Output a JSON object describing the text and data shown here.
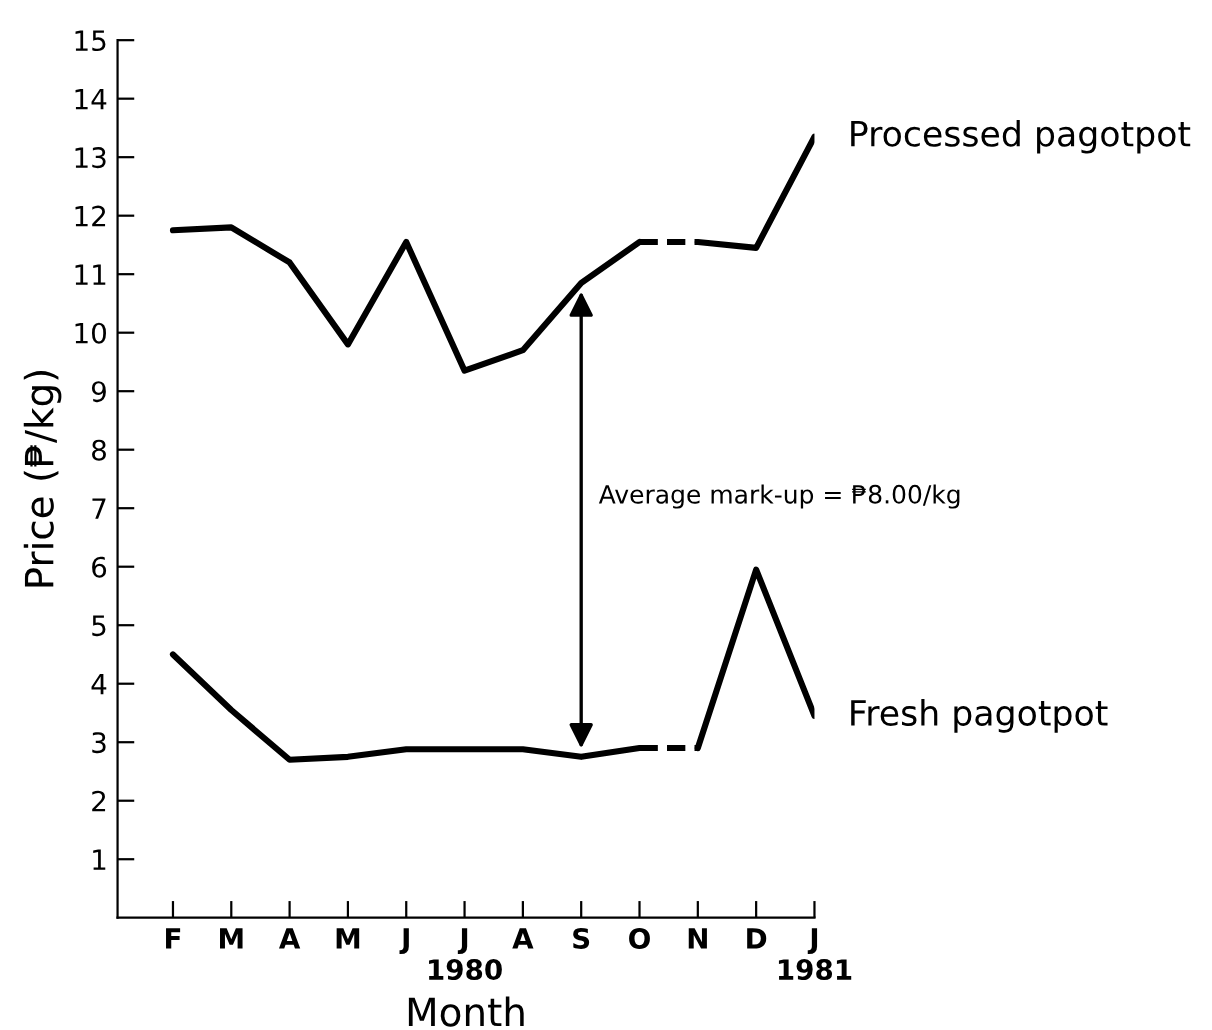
{
  "chart_data": {
    "type": "line",
    "xlabel": "Month",
    "ylabel": "Price (₱/kg)",
    "categories": [
      "F",
      "M",
      "A",
      "M",
      "J",
      "J\n1980",
      "A",
      "S",
      "O",
      "N",
      "D",
      "J\n1981"
    ],
    "series": [
      {
        "name": "Processed pagotpot",
        "color": "#000000",
        "line_style": "solid",
        "values": [
          11.75,
          11.8,
          11.2,
          9.8,
          11.55,
          9.35,
          9.7,
          10.85,
          11.55,
          null,
          null,
          null
        ]
      },
      {
        "color": "#000000",
        "line_style": "dashed",
        "values": [
          null,
          null,
          null,
          null,
          null,
          null,
          null,
          null,
          11.55,
          11.55,
          null,
          null
        ]
      },
      {
        "color": "#000000",
        "line_style": "solid",
        "values": [
          null,
          null,
          null,
          null,
          null,
          null,
          null,
          null,
          null,
          11.55,
          11.45,
          13.35
        ]
      },
      {
        "name": "Fresh pagotpot",
        "color": "#000000",
        "line_style": "solid",
        "values": [
          4.5,
          3.55,
          2.7,
          2.75,
          2.88,
          2.88,
          2.88,
          2.75,
          2.9,
          null,
          null,
          null
        ]
      },
      {
        "color": "#000000",
        "line_style": "dashed",
        "values": [
          null,
          null,
          null,
          null,
          null,
          null,
          null,
          null,
          2.9,
          2.9,
          null,
          null
        ]
      },
      {
        "color": "#000000",
        "line_style": "solid",
        "values": [
          null,
          null,
          null,
          null,
          null,
          null,
          null,
          null,
          null,
          2.9,
          5.95,
          3.45
        ]
      }
    ],
    "annotations": [
      "Average mark-up = ₱8.00/kg"
    ],
    "ylim": [
      0,
      15
    ],
    "yticks": [
      1,
      2,
      3,
      4,
      5,
      6,
      7,
      8,
      9,
      10,
      11,
      12,
      13,
      14,
      15
    ],
    "grid": false,
    "legend": false,
    "marker": "none"
  }
}
